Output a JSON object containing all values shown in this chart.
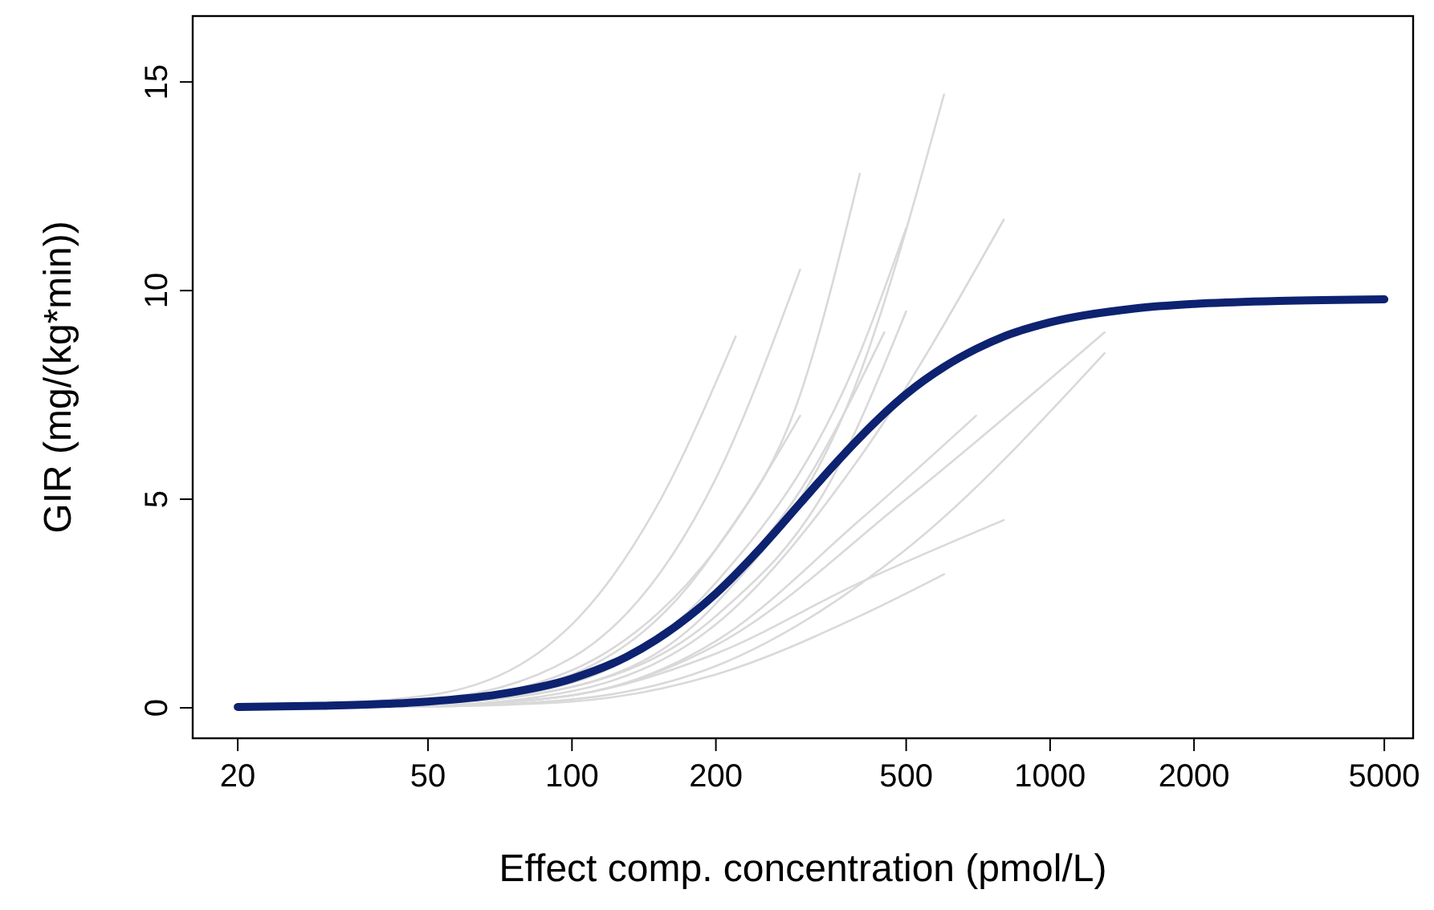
{
  "chart_data": {
    "type": "line",
    "xlabel": "Effect comp. concentration (pmol/L)",
    "ylabel": "GIR (mg/(kg*min))",
    "log": "x",
    "xlim": [
      16.1,
      5744
    ],
    "ylim": [
      -0.73,
      16.58
    ],
    "xticks": [
      20,
      50,
      100,
      200,
      500,
      1000,
      2000,
      5000
    ],
    "yticks": [
      0,
      5,
      10,
      15
    ],
    "grid": false,
    "marker": "none",
    "line_style": "solid",
    "series": [
      {
        "color": "#d9d9d9",
        "x": [
          20,
          50,
          100,
          150,
          220
        ],
        "values": [
          0,
          0.3,
          2.0,
          4.8,
          8.9
        ]
      },
      {
        "color": "#d9d9d9",
        "x": [
          20,
          50,
          100,
          200,
          300
        ],
        "values": [
          0,
          0.2,
          1.2,
          5.5,
          10.5
        ]
      },
      {
        "color": "#d9d9d9",
        "x": [
          20,
          50,
          100,
          200,
          300,
          400
        ],
        "values": [
          0,
          0.1,
          0.8,
          3.8,
          7.5,
          12.8
        ]
      },
      {
        "color": "#d9d9d9",
        "x": [
          20,
          50,
          100,
          200,
          400,
          600
        ],
        "values": [
          0,
          0.1,
          0.5,
          2.5,
          8.0,
          14.7
        ]
      },
      {
        "color": "#d9d9d9",
        "x": [
          20,
          50,
          100,
          200,
          400,
          500
        ],
        "values": [
          0,
          0.1,
          0.6,
          3.0,
          8.5,
          11.5
        ]
      },
      {
        "color": "#d9d9d9",
        "x": [
          20,
          50,
          100,
          200,
          400,
          800
        ],
        "values": [
          0,
          0.05,
          0.4,
          2.0,
          6.0,
          11.7
        ]
      },
      {
        "color": "#d9d9d9",
        "x": [
          20,
          50,
          100,
          200,
          500,
          1300
        ],
        "values": [
          0,
          0.05,
          0.3,
          1.5,
          5.0,
          9.0
        ]
      },
      {
        "color": "#d9d9d9",
        "x": [
          20,
          50,
          100,
          200,
          500,
          1300
        ],
        "values": [
          0,
          0.03,
          0.2,
          1.0,
          3.8,
          8.5
        ]
      },
      {
        "color": "#d9d9d9",
        "x": [
          20,
          50,
          100,
          200,
          400,
          800
        ],
        "values": [
          0,
          0.05,
          0.3,
          1.3,
          3.0,
          4.5
        ]
      },
      {
        "color": "#d9d9d9",
        "x": [
          20,
          50,
          100,
          200,
          400,
          600
        ],
        "values": [
          0,
          0.03,
          0.15,
          0.8,
          2.2,
          3.2
        ]
      },
      {
        "color": "#d9d9d9",
        "x": [
          20,
          50,
          100,
          200,
          300,
          450
        ],
        "values": [
          0,
          0.1,
          0.6,
          2.8,
          5.2,
          9.0
        ]
      },
      {
        "color": "#d9d9d9",
        "x": [
          20,
          50,
          100,
          200,
          300
        ],
        "values": [
          0,
          0.15,
          0.9,
          3.8,
          7.0
        ]
      },
      {
        "color": "#d9d9d9",
        "x": [
          20,
          50,
          100,
          200,
          400,
          700
        ],
        "values": [
          0,
          0.05,
          0.3,
          1.6,
          4.5,
          7.0
        ]
      },
      {
        "color": "#d9d9d9",
        "x": [
          20,
          50,
          100,
          200,
          350,
          500
        ],
        "values": [
          0,
          0.1,
          0.5,
          2.2,
          5.5,
          9.5
        ]
      },
      {
        "color": "#0d2270",
        "x": [
          20,
          30,
          40,
          50,
          70,
          100,
          130,
          150,
          200,
          250,
          300,
          350,
          400,
          500,
          600,
          700,
          800,
          1000,
          1500,
          2000,
          3000,
          5000
        ],
        "values": [
          0.02,
          0.05,
          0.09,
          0.15,
          0.32,
          0.7,
          1.22,
          1.63,
          2.74,
          3.87,
          4.9,
          5.77,
          6.48,
          7.52,
          8.17,
          8.6,
          8.9,
          9.24,
          9.57,
          9.68,
          9.75,
          9.79
        ]
      }
    ]
  }
}
